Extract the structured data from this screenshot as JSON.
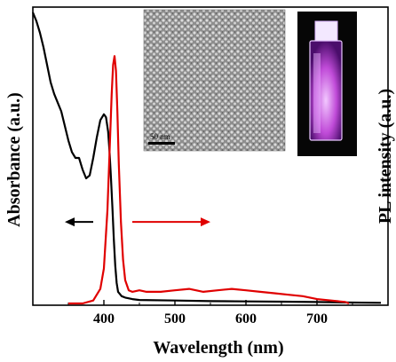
{
  "chart_data": {
    "type": "line",
    "xlabel": "Wavelength (nm)",
    "ylabel_left": "Absorbance (a.u.)",
    "ylabel_right": "PL intensity (a.u.)",
    "xlim": [
      300,
      800
    ],
    "ylim": [
      0,
      1
    ],
    "x_ticks": [
      400,
      500,
      600,
      700
    ],
    "y_ticks_shown": false,
    "grid": false,
    "series": [
      {
        "color": "#000000",
        "x": [
          300,
          305,
          310,
          315,
          320,
          325,
          330,
          335,
          340,
          345,
          350,
          355,
          360,
          365,
          370,
          375,
          380,
          385,
          390,
          395,
          400,
          403,
          406,
          408,
          410,
          412,
          414,
          416,
          418,
          420,
          425,
          430,
          440,
          450,
          500,
          550,
          600,
          650,
          700,
          750,
          790
        ],
        "y": [
          1.0,
          0.97,
          0.93,
          0.88,
          0.82,
          0.76,
          0.72,
          0.69,
          0.66,
          0.61,
          0.56,
          0.52,
          0.5,
          0.5,
          0.46,
          0.43,
          0.44,
          0.5,
          0.57,
          0.63,
          0.65,
          0.64,
          0.59,
          0.52,
          0.43,
          0.33,
          0.22,
          0.13,
          0.07,
          0.04,
          0.025,
          0.02,
          0.015,
          0.012,
          0.01,
          0.008,
          0.007,
          0.006,
          0.005,
          0.003,
          0.002
        ]
      },
      {
        "color": "#e00000",
        "x": [
          350,
          370,
          385,
          395,
          400,
          405,
          408,
          411,
          413,
          415,
          417,
          419,
          421,
          424,
          427,
          430,
          435,
          440,
          450,
          460,
          480,
          500,
          520,
          540,
          560,
          580,
          600,
          620,
          640,
          660,
          680,
          700,
          720,
          740,
          745
        ],
        "y": [
          0.0,
          0.0,
          0.01,
          0.05,
          0.12,
          0.32,
          0.52,
          0.72,
          0.82,
          0.85,
          0.8,
          0.66,
          0.48,
          0.28,
          0.15,
          0.08,
          0.045,
          0.04,
          0.045,
          0.04,
          0.04,
          0.045,
          0.05,
          0.04,
          0.045,
          0.05,
          0.045,
          0.04,
          0.035,
          0.03,
          0.025,
          0.015,
          0.01,
          0.005,
          0.0
        ]
      }
    ],
    "annotations": [
      {
        "type": "arrow",
        "direction": "left",
        "color": "#000000",
        "x_from": 385,
        "x_to": 345,
        "y": 0.28
      },
      {
        "type": "arrow",
        "direction": "right",
        "color": "#e00000",
        "x_from": 440,
        "x_to": 550,
        "y": 0.28
      }
    ]
  },
  "insets": {
    "tem_scale_label": "50 nm",
    "vial_description": "cuvette glowing violet under UV"
  },
  "colors": {
    "absorbance_line": "#000000",
    "pl_line": "#e00000",
    "vial_glow": "#c04bd8"
  }
}
